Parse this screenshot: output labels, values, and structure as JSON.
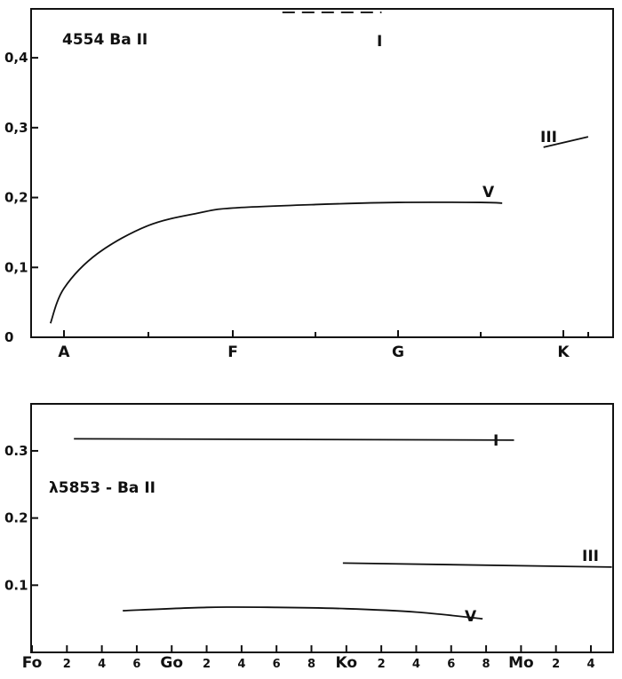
{
  "chart_data": [
    {
      "type": "line",
      "title": "4554 Ba II",
      "xlabel": "",
      "ylabel": "",
      "x_axis": {
        "kind": "spectral-type",
        "ticks": [
          "A",
          "F",
          "G",
          "K"
        ],
        "range": [
          -0.15,
          3.2
        ]
      },
      "ylim": [
        0,
        0.47
      ],
      "y_ticks": [
        "0",
        "0,1",
        "0,2",
        "0,3",
        "0,4"
      ],
      "grid": false,
      "series": [
        {
          "name": "V",
          "style": "solid",
          "points": [
            [
              -0.08,
              0.02
            ],
            [
              0.0,
              0.07
            ],
            [
              0.2,
              0.12
            ],
            [
              0.5,
              0.16
            ],
            [
              0.8,
              0.178
            ],
            [
              1.0,
              0.185
            ],
            [
              1.5,
              0.19
            ],
            [
              2.0,
              0.193
            ],
            [
              2.5,
              0.193
            ],
            [
              2.63,
              0.192
            ]
          ]
        },
        {
          "name": "I",
          "style": "dashed",
          "points": [
            [
              1.3,
              0.465
            ],
            [
              1.9,
              0.465
            ]
          ]
        },
        {
          "name": "III",
          "style": "solid",
          "points": [
            [
              2.88,
              0.272
            ],
            [
              3.15,
              0.287
            ]
          ]
        }
      ]
    },
    {
      "type": "line",
      "title": "λ5853 - Ba II",
      "xlabel": "",
      "ylabel": "",
      "x_axis": {
        "kind": "spectral-type",
        "ticks": [
          "Fo",
          "2",
          "4",
          "6",
          "Go",
          "2",
          "4",
          "6",
          "8",
          "Ko",
          "2",
          "4",
          "6",
          "8",
          "Mo",
          "2",
          "4"
        ],
        "range": [
          0,
          16.7
        ]
      },
      "ylim": [
        0,
        0.37
      ],
      "y_ticks": [
        "0.1",
        "0.2",
        "0.3"
      ],
      "grid": false,
      "series": [
        {
          "name": "I",
          "style": "solid",
          "points": [
            [
              1.2,
              0.318
            ],
            [
              13.8,
              0.316
            ]
          ]
        },
        {
          "name": "III",
          "style": "solid",
          "points": [
            [
              8.9,
              0.133
            ],
            [
              16.6,
              0.127
            ]
          ]
        },
        {
          "name": "V",
          "style": "solid",
          "points": [
            [
              2.6,
              0.062
            ],
            [
              5.0,
              0.067
            ],
            [
              7.0,
              0.067
            ],
            [
              9.0,
              0.065
            ],
            [
              11.0,
              0.06
            ],
            [
              12.9,
              0.05
            ]
          ]
        }
      ]
    }
  ]
}
